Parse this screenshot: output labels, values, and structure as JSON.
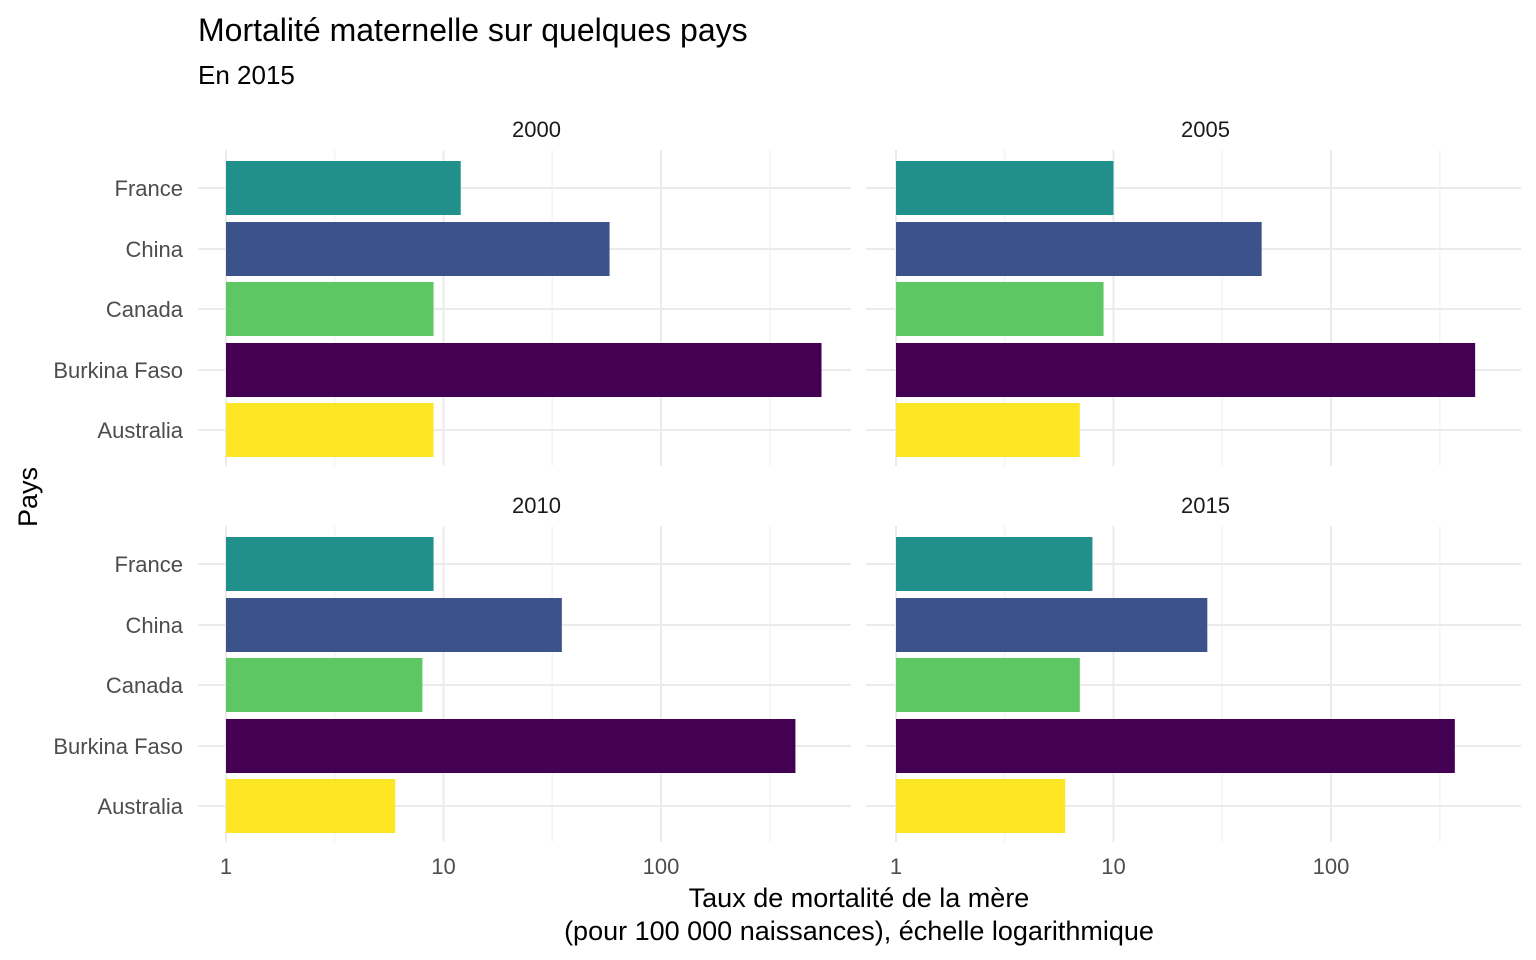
{
  "chart_data": {
    "type": "bar",
    "orientation": "horizontal",
    "facet_by": "year",
    "title": "Mortalité maternelle sur quelques pays",
    "subtitle": "En 2015",
    "xlabel_line1": "Taux de mortalité de la mère",
    "xlabel_line2": "(pour 100 000 naissances), échelle logarithmique",
    "ylabel": "Pays",
    "x_scale": "log10",
    "x_ticks": [
      1,
      10,
      100
    ],
    "x_tick_labels": [
      "1",
      "10",
      "100"
    ],
    "categories": [
      "France",
      "China",
      "Canada",
      "Burkina Faso",
      "Australia"
    ],
    "colors": {
      "France": "#21908C",
      "China": "#3B528B",
      "Canada": "#5DC863",
      "Burkina Faso": "#440154",
      "Australia": "#FDE725"
    },
    "panels": [
      {
        "label": "2000",
        "values": {
          "France": 12,
          "China": 58,
          "Canada": 9,
          "Burkina Faso": 547,
          "Australia": 9
        }
      },
      {
        "label": "2005",
        "values": {
          "France": 10,
          "China": 48,
          "Canada": 9,
          "Burkina Faso": 460,
          "Australia": 7
        }
      },
      {
        "label": "2010",
        "values": {
          "France": 9,
          "China": 35,
          "Canada": 8,
          "Burkina Faso": 415,
          "Australia": 6
        }
      },
      {
        "label": "2015",
        "values": {
          "France": 8,
          "China": 27,
          "Canada": 7,
          "Burkina Faso": 371,
          "Australia": 6
        }
      }
    ],
    "grid": true,
    "legend": "none"
  }
}
